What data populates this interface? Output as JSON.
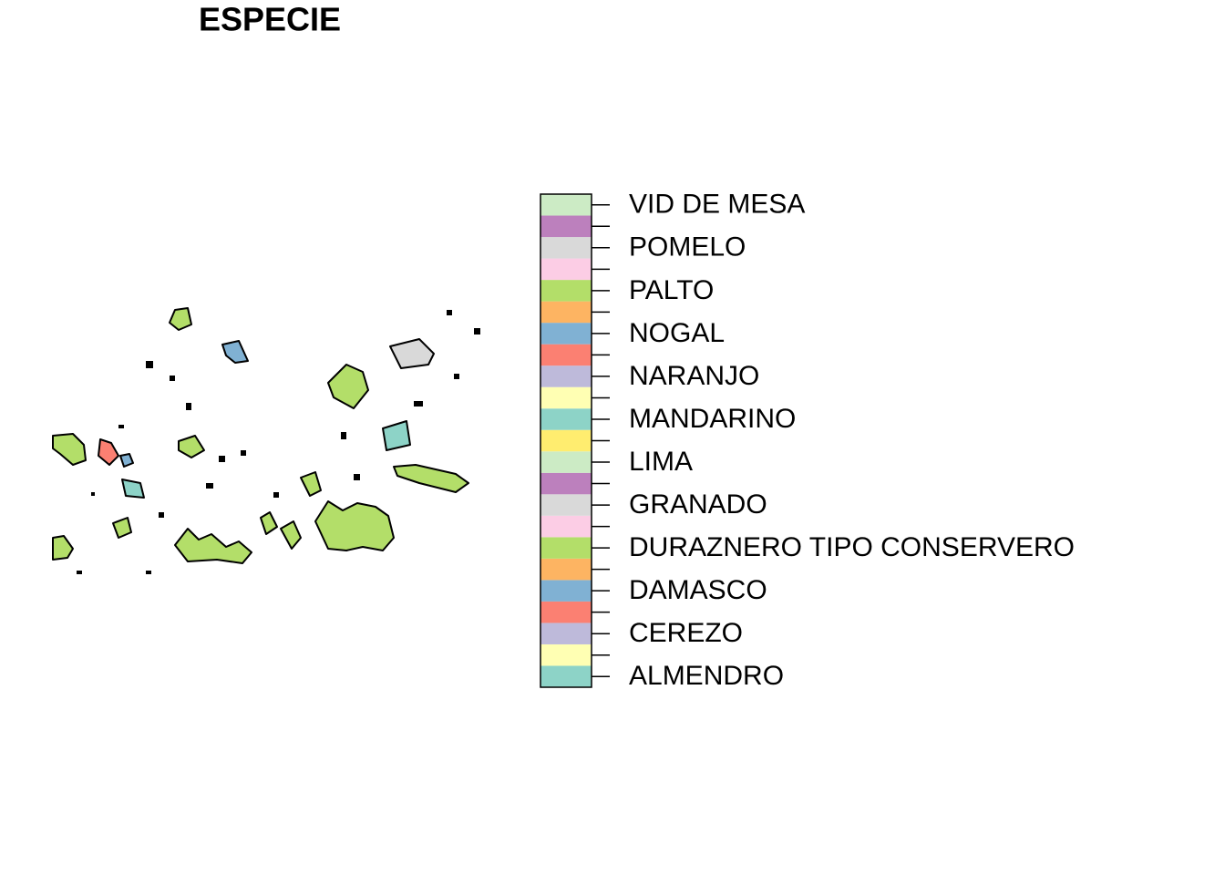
{
  "title": "ESPECIE",
  "legend": {
    "categories": [
      "ALMENDRO",
      null,
      "CEREZO",
      null,
      "DAMASCO",
      null,
      "DURAZNERO TIPO CONSERVERO",
      null,
      "GRANADO",
      null,
      "LIMA",
      null,
      "MANDARINO",
      null,
      "NARANJO",
      null,
      "NOGAL",
      null,
      "PALTO",
      null,
      "POMELO",
      null,
      "VID DE MESA"
    ],
    "colors": [
      "#8DD3C7",
      "#FFFFB3",
      "#BEBADA",
      "#FB8072",
      "#80B1D3",
      "#FDB462",
      "#B3DE69",
      "#FCCDE5",
      "#D9D9D9",
      "#BC80BD",
      "#CCEBC5",
      "#FFED6F",
      "#8DD3C7",
      "#FFFFB3",
      "#BEBADA",
      "#FB8072",
      "#80B1D3",
      "#FDB462",
      "#B3DE69",
      "#FCCDE5",
      "#D9D9D9",
      "#BC80BD",
      "#CCEBC5"
    ]
  }
}
